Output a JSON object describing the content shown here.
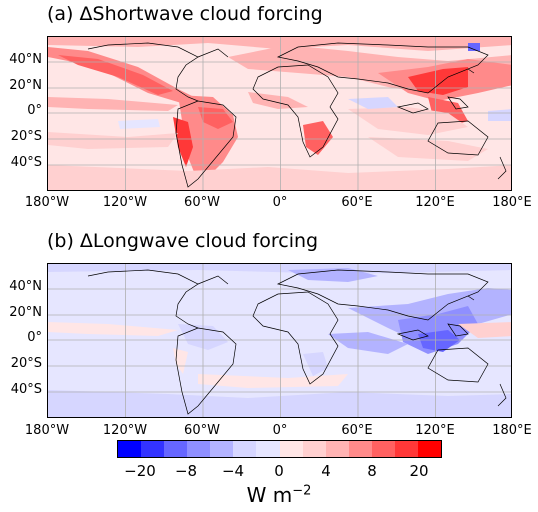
{
  "panels": [
    {
      "id": "a",
      "title": "(a) ΔShortwave cloud forcing",
      "background_color": "#ffe6e6",
      "latitude_labels": [
        "40°N",
        "20°N",
        "0°",
        "20°S",
        "40°S"
      ],
      "longitude_labels": [
        "180°W",
        "120°W",
        "60°W",
        "0°",
        "60°E",
        "120°E",
        "180°E"
      ]
    },
    {
      "id": "b",
      "title": "(b) ΔLongwave cloud forcing",
      "background_color": "#e6e6ff",
      "latitude_labels": [
        "40°N",
        "20°N",
        "0°",
        "20°S",
        "40°S"
      ],
      "longitude_labels": [
        "180°W",
        "120°W",
        "60°W",
        "0°",
        "60°E",
        "120°E",
        "180°E"
      ]
    }
  ],
  "colorbar": {
    "tick_labels": [
      "−20",
      "−8",
      "−4",
      "0",
      "4",
      "8",
      "20"
    ],
    "units_base": "W m",
    "units_exponent": "−2",
    "colors": [
      "#0000ff",
      "#3333ff",
      "#6666ff",
      "#8f8fff",
      "#b3b3ff",
      "#d6d6ff",
      "#e6e6ff",
      "#ffe6e6",
      "#ffd0d0",
      "#ffb3b3",
      "#ff8a8a",
      "#ff6161",
      "#ff3838",
      "#ff0000"
    ]
  }
}
